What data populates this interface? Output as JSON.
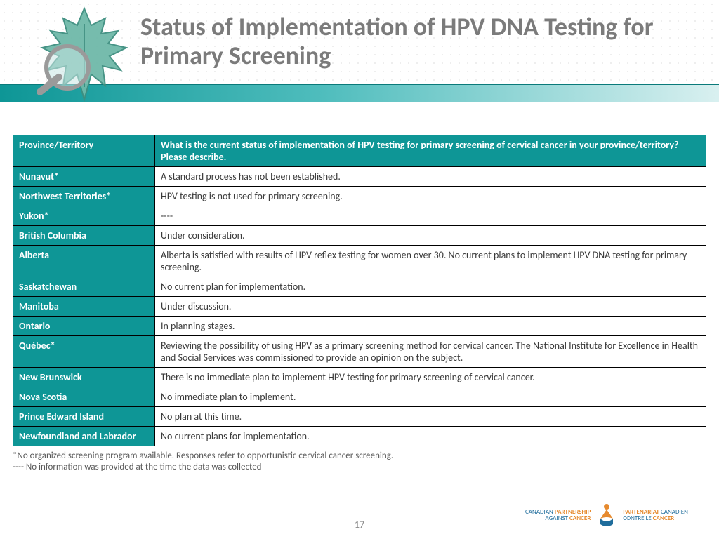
{
  "title": "Status of Implementation of HPV DNA Testing for Primary Screening",
  "colors": {
    "teal": "#0e9696",
    "title_gray": "#7b7b7b",
    "border": "#000000",
    "logo_blue": "#1f6d9c",
    "logo_orange": "#e68a2e"
  },
  "table": {
    "header": {
      "col1": "Province/Territory",
      "col2": "What is the current status of implementation of HPV testing for primary screening of cervical cancer in your province/territory? Please describe."
    },
    "rows": [
      {
        "province": "Nunavut*",
        "status": "A standard process has not been established."
      },
      {
        "province": "Northwest Territories*",
        "status": "HPV testing is not used for primary screening."
      },
      {
        "province": "Yukon*",
        "status": "----"
      },
      {
        "province": "British Columbia",
        "status": "Under consideration."
      },
      {
        "province": "Alberta",
        "status": "Alberta is satisfied with results of HPV reflex testing for women over 30. No current plans to implement HPV DNA testing for primary screening."
      },
      {
        "province": "Saskatchewan",
        "status": "No current plan for implementation."
      },
      {
        "province": "Manitoba",
        "status": "Under discussion."
      },
      {
        "province": "Ontario",
        "status": "In planning stages."
      },
      {
        "province": "Québec*",
        "status": "Reviewing the possibility of using HPV as a primary screening method for cervical cancer. The National Institute for Excellence in Health and Social Services was commissioned to provide an opinion on the subject."
      },
      {
        "province": "New Brunswick",
        "status": "There is no immediate plan to implement HPV testing  for primary screening of cervical cancer."
      },
      {
        "province": "Nova Scotia",
        "status": "No immediate plan to implement."
      },
      {
        "province": "Prince Edward Island",
        "status": "No plan at this time."
      },
      {
        "province": "Newfoundland and Labrador",
        "status": "No current plans for implementation."
      }
    ]
  },
  "footnotes": {
    "line1": "*No organized screening program available. Responses refer to opportunistic cervical cancer screening.",
    "line2": "---- No information was provided at the time the data was collected"
  },
  "page_number": "17",
  "logo": {
    "left1": "CANADIAN ",
    "left1b": "PARTNERSHIP",
    "left2": "AGAINST ",
    "left2b": "CANCER",
    "right1b": "PARTENARIAT",
    "right1": " CANADIEN",
    "right2": "CONTRE LE ",
    "right2b": "CANCER"
  }
}
